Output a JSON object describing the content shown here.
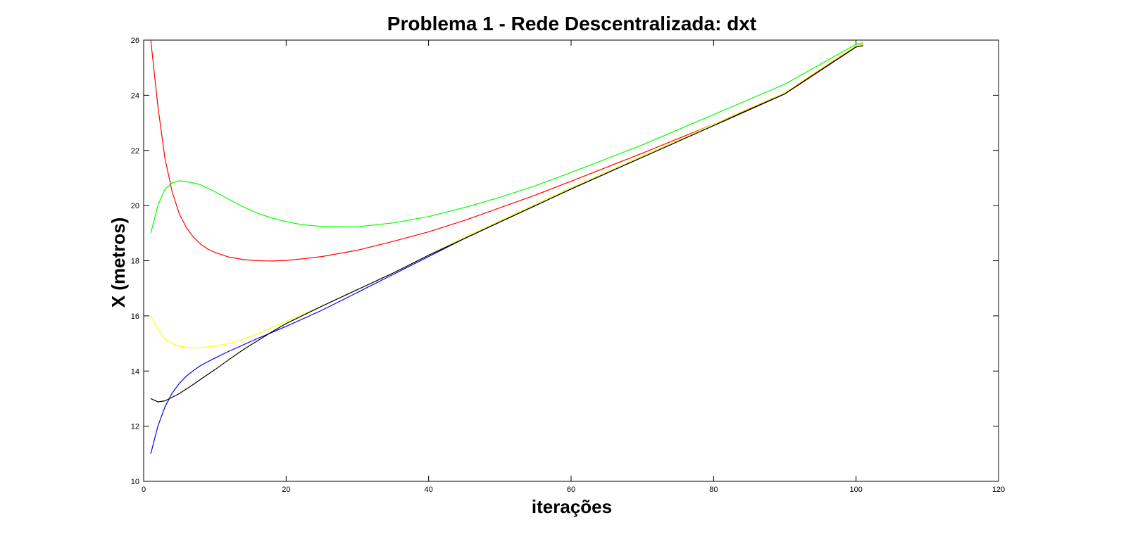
{
  "chart_data": {
    "type": "line",
    "title": "Problema 1 - Rede Descentralizada: dxt",
    "xlabel": "iterações",
    "ylabel": "X (metros)",
    "xlim": [
      0,
      120
    ],
    "ylim": [
      10,
      26
    ],
    "xticks": [
      0,
      20,
      40,
      60,
      80,
      100,
      120
    ],
    "yticks": [
      10,
      12,
      14,
      16,
      18,
      20,
      22,
      24,
      26
    ],
    "grid": false,
    "legend": "none",
    "series": [
      {
        "color": "#ff0000",
        "x": [
          1,
          2,
          3,
          4,
          5,
          6,
          7,
          8,
          9,
          10,
          12,
          14,
          16,
          18,
          20,
          22,
          25,
          30,
          35,
          40,
          45,
          50,
          55,
          60,
          70,
          80,
          90,
          100,
          101
        ],
        "y": [
          26.0,
          23.6,
          21.7,
          20.5,
          19.7,
          19.2,
          18.85,
          18.6,
          18.42,
          18.3,
          18.13,
          18.04,
          18.0,
          17.99,
          18.01,
          18.06,
          18.15,
          18.38,
          18.7,
          19.05,
          19.46,
          19.92,
          20.38,
          20.88,
          21.9,
          22.95,
          24.05,
          25.8,
          25.85
        ]
      },
      {
        "color": "#00ff00",
        "x": [
          1,
          2,
          3,
          4,
          5,
          6,
          7,
          8,
          10,
          12,
          14,
          16,
          18,
          20,
          22,
          25,
          30,
          35,
          40,
          45,
          50,
          55,
          60,
          70,
          80,
          90,
          100,
          101
        ],
        "y": [
          19.0,
          20.0,
          20.6,
          20.82,
          20.9,
          20.87,
          20.82,
          20.75,
          20.5,
          20.22,
          19.95,
          19.72,
          19.55,
          19.42,
          19.32,
          19.24,
          19.23,
          19.37,
          19.6,
          19.93,
          20.3,
          20.72,
          21.2,
          22.2,
          23.3,
          24.4,
          25.85,
          25.9
        ]
      },
      {
        "color": "#ffff00",
        "x": [
          1,
          2,
          3,
          4,
          5,
          6,
          7,
          8,
          10,
          12,
          14,
          16,
          18,
          20,
          25,
          30,
          35,
          40,
          45,
          50,
          55,
          60,
          70,
          80,
          90,
          100,
          101
        ],
        "y": [
          16.0,
          15.5,
          15.15,
          15.0,
          14.9,
          14.86,
          14.84,
          14.85,
          14.9,
          15.0,
          15.15,
          15.35,
          15.58,
          15.8,
          16.35,
          16.95,
          17.55,
          18.2,
          18.85,
          19.45,
          20.05,
          20.65,
          21.8,
          22.95,
          24.1,
          25.8,
          25.85
        ]
      },
      {
        "color": "#0000ff",
        "x": [
          1,
          2,
          3,
          4,
          5,
          6,
          7,
          8,
          10,
          12,
          14,
          16,
          18,
          20,
          25,
          30,
          35,
          40,
          45,
          50,
          55,
          60,
          70,
          80,
          90,
          100,
          101
        ],
        "y": [
          11.0,
          12.0,
          12.7,
          13.2,
          13.55,
          13.82,
          14.02,
          14.2,
          14.47,
          14.72,
          14.95,
          15.18,
          15.4,
          15.62,
          16.2,
          16.85,
          17.5,
          18.15,
          18.8,
          19.4,
          20.0,
          20.6,
          21.75,
          22.9,
          24.05,
          25.75,
          25.8
        ]
      },
      {
        "color": "#000000",
        "x": [
          1,
          2,
          3,
          4,
          5,
          6,
          7,
          8,
          10,
          12,
          14,
          16,
          18,
          20,
          25,
          30,
          35,
          40,
          45,
          50,
          55,
          60,
          70,
          80,
          90,
          100,
          101
        ],
        "y": [
          13.0,
          12.88,
          12.92,
          13.05,
          13.18,
          13.35,
          13.52,
          13.7,
          14.05,
          14.42,
          14.78,
          15.1,
          15.42,
          15.72,
          16.35,
          16.95,
          17.55,
          18.2,
          18.8,
          19.4,
          20.0,
          20.6,
          21.75,
          22.9,
          24.05,
          25.75,
          25.8
        ]
      }
    ]
  }
}
